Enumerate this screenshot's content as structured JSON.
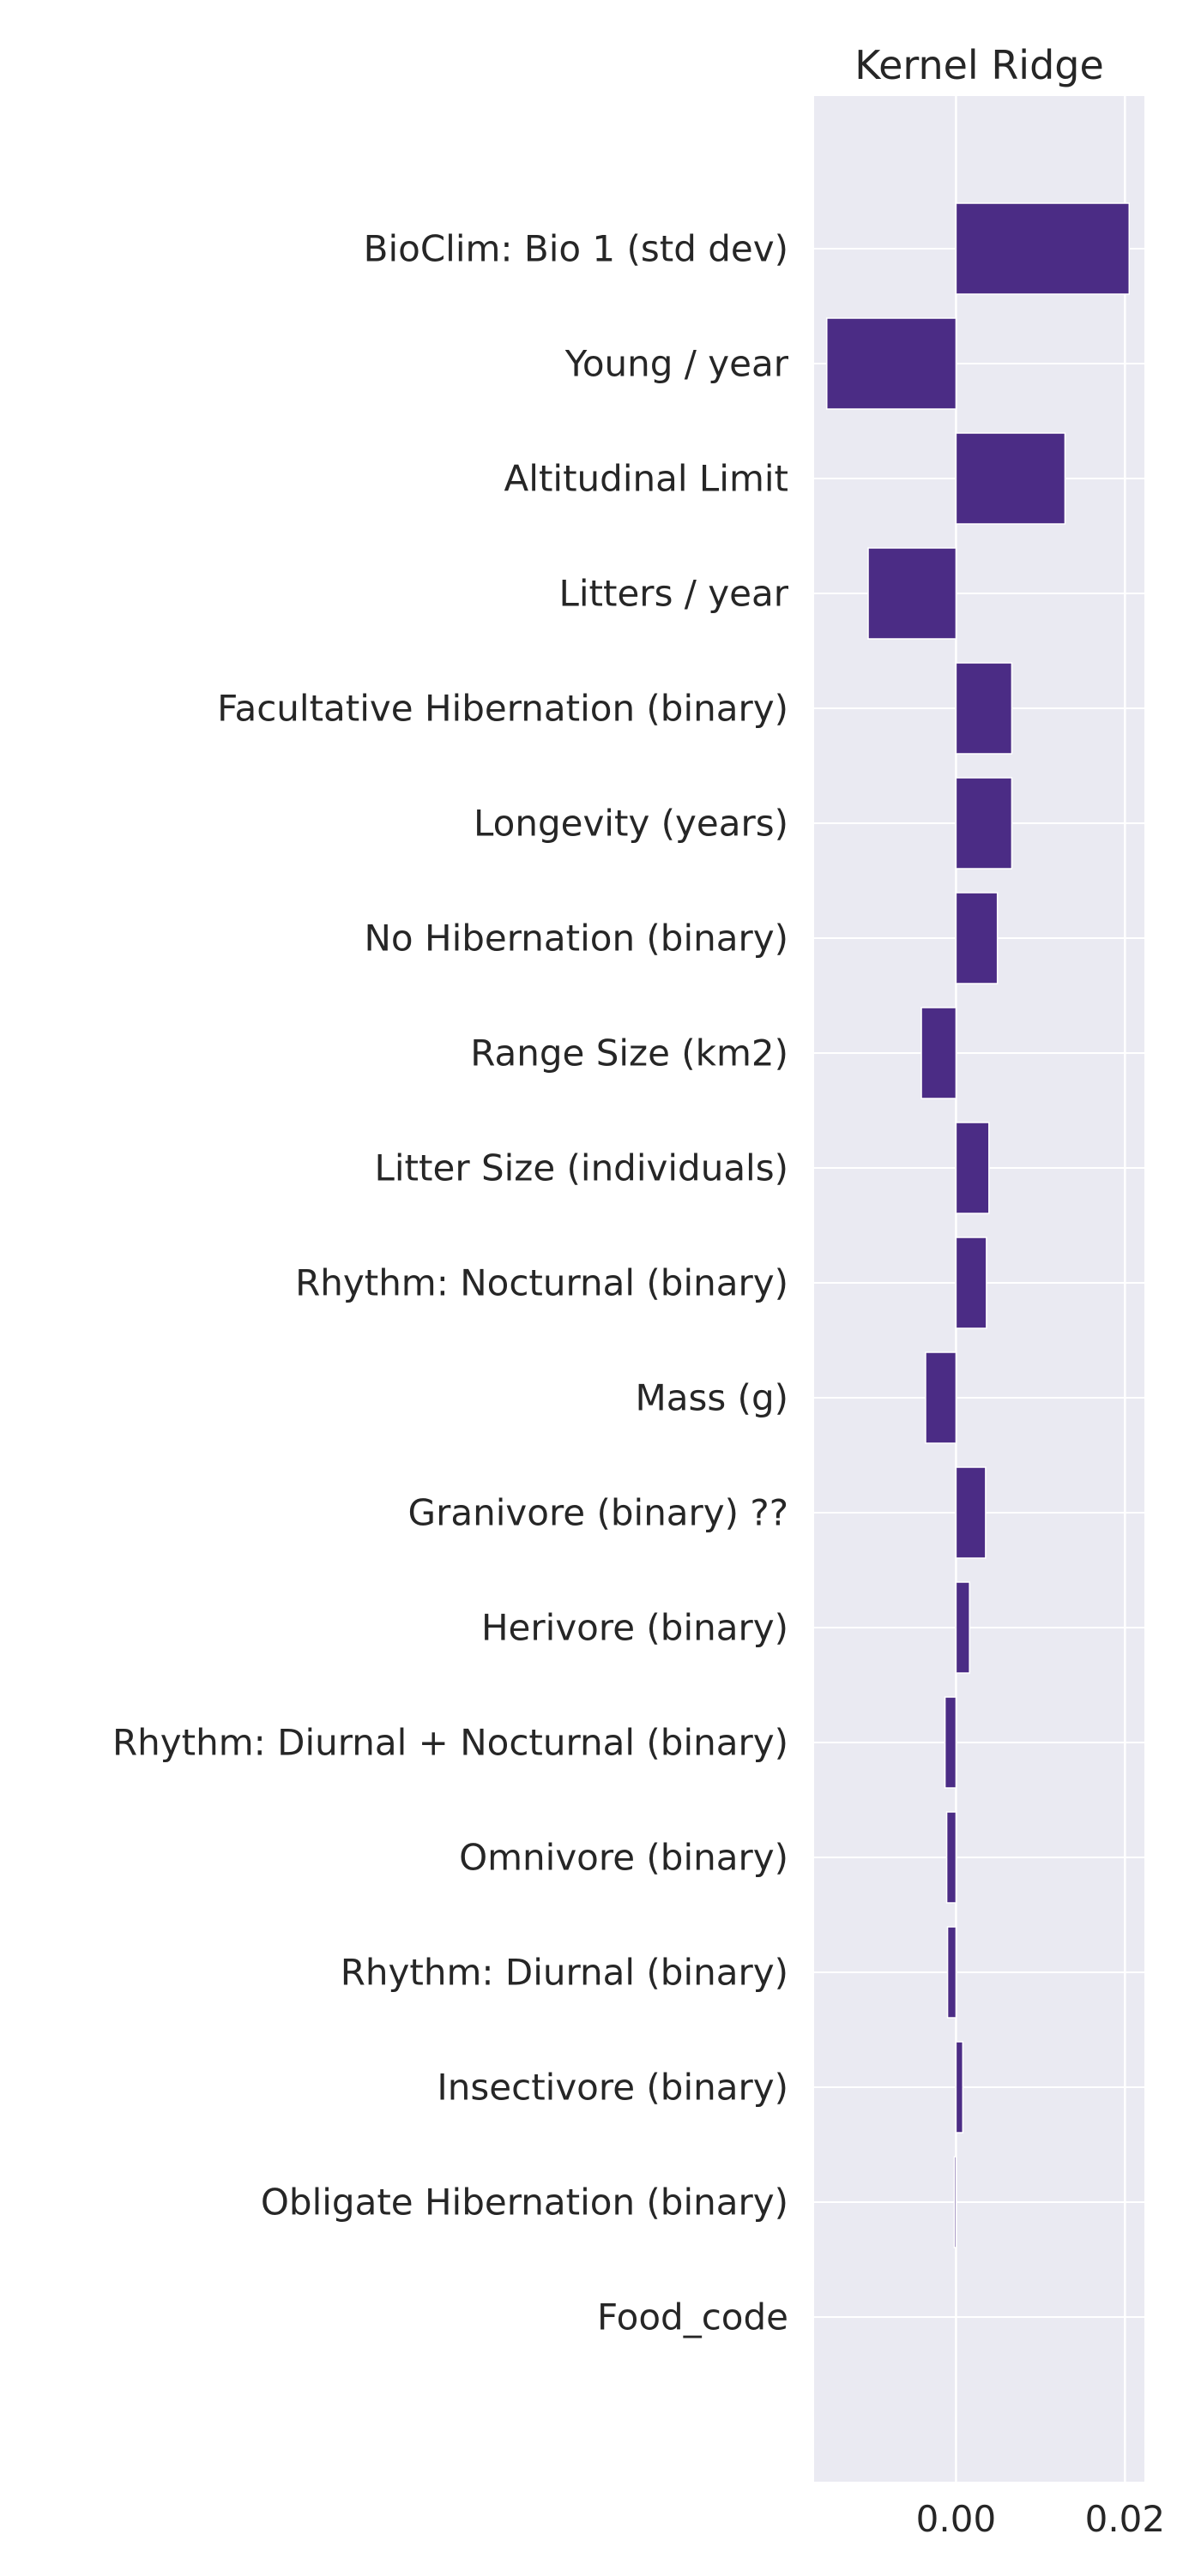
{
  "chart_data": {
    "type": "bar",
    "orientation": "horizontal",
    "title": "Kernel Ridge",
    "xlabel": "",
    "ylabel": "",
    "categories": [
      "BioClim: Bio 1 (std dev)",
      "Young / year",
      "Altitudinal Limit",
      "Litters / year",
      "Facultative Hibernation (binary) ",
      "Longevity (years)",
      "No Hibernation (binary)",
      "Range Size (km2)",
      "Litter Size (individuals)",
      "Rhythm: Nocturnal (binary)",
      "Mass (g)",
      "Granivore (binary) ??",
      "Herivore (binary)",
      "Rhythm: Diurnal + Nocturnal (binary)",
      "Omnivore (binary)",
      "Rhythm: Diurnal (binary)",
      "Insectivore (binary)",
      "Obligate Hibernation (binary)",
      "Food_code"
    ],
    "values": [
      0.0205,
      -0.0153,
      0.0129,
      -0.0104,
      0.0066,
      0.0066,
      0.0049,
      -0.0041,
      0.0039,
      0.0036,
      -0.0036,
      0.0035,
      0.0016,
      -0.0013,
      -0.0011,
      -0.001,
      0.0008,
      -0.0002,
      0.0
    ],
    "xlim": [
      -0.0168,
      0.0223
    ],
    "xticks": [
      0.0,
      0.02
    ],
    "xtick_labels": [
      "0.00",
      "0.02"
    ],
    "grid": true,
    "legend": "none",
    "colors": {
      "bar": "#4b2c85",
      "plot_background": "#eaeaf2",
      "grid": "#ffffff",
      "text": "#262626"
    }
  }
}
